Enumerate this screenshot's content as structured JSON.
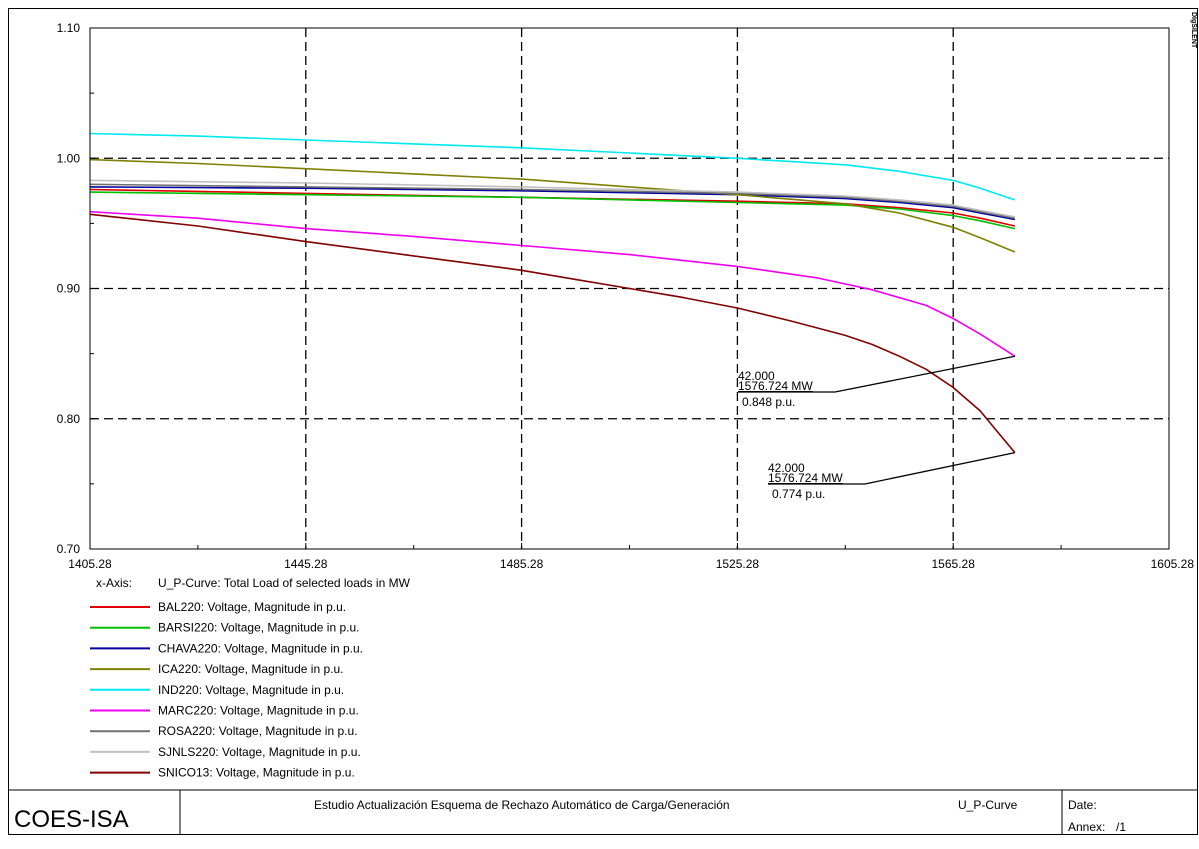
{
  "chart_data": {
    "type": "line",
    "watermark": "DIgSILENT",
    "xlim": [
      1405.28,
      1605.28
    ],
    "ylim": [
      0.7,
      1.1
    ],
    "x_ticks": [
      "1405.28",
      "1445.28",
      "1485.28",
      "1525.28",
      "1565.28",
      "1605.28"
    ],
    "y_ticks": [
      "0.70",
      "0.80",
      "0.90",
      "1.00",
      "1.10"
    ],
    "grid": "dashed",
    "x_axis_label": "x-Axis:",
    "x_axis_desc": "U_P-Curve: Total Load of selected loads in MW",
    "series": [
      {
        "name": "BAL220: Voltage, Magnitude in p.u.",
        "color": "#e00000",
        "x": [
          1405.28,
          1445.28,
          1485.28,
          1525.28,
          1545.28,
          1555.28,
          1565.28,
          1570.28,
          1576.72
        ],
        "y": [
          0.976,
          0.973,
          0.97,
          0.967,
          0.965,
          0.962,
          0.958,
          0.954,
          0.948
        ]
      },
      {
        "name": "BARSI220: Voltage, Magnitude in p.u.",
        "color": "#00c000",
        "x": [
          1405.28,
          1445.28,
          1485.28,
          1525.28,
          1545.28,
          1555.28,
          1565.28,
          1570.28,
          1576.72
        ],
        "y": [
          0.974,
          0.972,
          0.97,
          0.966,
          0.964,
          0.961,
          0.956,
          0.952,
          0.946
        ]
      },
      {
        "name": "CHAVA220: Voltage, Magnitude in p.u.",
        "color": "#0000a0",
        "x": [
          1405.28,
          1445.28,
          1485.28,
          1525.28,
          1545.28,
          1555.28,
          1565.28,
          1570.28,
          1576.72
        ],
        "y": [
          0.978,
          0.977,
          0.975,
          0.972,
          0.969,
          0.966,
          0.962,
          0.958,
          0.953
        ]
      },
      {
        "name": "ICA220: Voltage, Magnitude in p.u.",
        "color": "#808000",
        "x": [
          1405.28,
          1425.28,
          1445.28,
          1465.28,
          1485.28,
          1505.28,
          1525.28,
          1545.28,
          1555.28,
          1565.28,
          1570.28,
          1576.72
        ],
        "y": [
          0.999,
          0.996,
          0.992,
          0.988,
          0.984,
          0.978,
          0.972,
          0.965,
          0.958,
          0.947,
          0.939,
          0.928
        ]
      },
      {
        "name": "IND220: Voltage, Magnitude in p.u.",
        "color": "#00e8f0",
        "x": [
          1405.28,
          1425.28,
          1445.28,
          1465.28,
          1485.28,
          1505.28,
          1525.28,
          1545.28,
          1555.28,
          1565.28,
          1570.28,
          1576.72
        ],
        "y": [
          1.019,
          1.017,
          1.014,
          1.011,
          1.008,
          1.004,
          1.0,
          0.995,
          0.99,
          0.983,
          0.977,
          0.968
        ]
      },
      {
        "name": "MARC220: Voltage, Magnitude in p.u.",
        "color": "#f000f0",
        "x": [
          1405.28,
          1425.28,
          1445.28,
          1465.28,
          1485.28,
          1505.28,
          1525.28,
          1540.28,
          1550.28,
          1560.28,
          1565.28,
          1570.28,
          1576.72
        ],
        "y": [
          0.959,
          0.954,
          0.946,
          0.94,
          0.933,
          0.926,
          0.917,
          0.908,
          0.899,
          0.887,
          0.877,
          0.865,
          0.848
        ]
      },
      {
        "name": "ROSA220: Voltage, Magnitude in p.u.",
        "color": "#707070",
        "x": [
          1405.28,
          1445.28,
          1485.28,
          1525.28,
          1545.28,
          1555.28,
          1565.28,
          1570.28,
          1576.72
        ],
        "y": [
          0.98,
          0.978,
          0.976,
          0.973,
          0.97,
          0.967,
          0.963,
          0.959,
          0.954
        ]
      },
      {
        "name": "SJNLS220: Voltage, Magnitude in p.u.",
        "color": "#c0c0c0",
        "x": [
          1405.28,
          1445.28,
          1485.28,
          1525.28,
          1545.28,
          1555.28,
          1565.28,
          1570.28,
          1576.72
        ],
        "y": [
          0.983,
          0.981,
          0.978,
          0.974,
          0.971,
          0.968,
          0.964,
          0.96,
          0.955
        ]
      },
      {
        "name": "SNICO13: Voltage, Magnitude in p.u.",
        "color": "#800000",
        "x": [
          1405.28,
          1425.28,
          1445.28,
          1465.28,
          1485.28,
          1495.28,
          1505.28,
          1515.28,
          1525.28,
          1535.28,
          1545.28,
          1550.28,
          1555.28,
          1560.28,
          1565.28,
          1570.28,
          1573.28,
          1576.72
        ],
        "y": [
          0.957,
          0.948,
          0.936,
          0.925,
          0.914,
          0.907,
          0.9,
          0.893,
          0.885,
          0.875,
          0.864,
          0.857,
          0.848,
          0.838,
          0.824,
          0.806,
          0.791,
          0.774
        ]
      }
    ],
    "annotations": [
      {
        "target_x": 1576.72,
        "target_y": 0.848,
        "lines": [
          "42.000",
          "1576.724 MW",
          "0.848 p.u."
        ]
      },
      {
        "target_x": 1576.72,
        "target_y": 0.774,
        "lines": [
          "42.000",
          "1576.724 MW",
          "0.774 p.u."
        ]
      }
    ]
  },
  "footer": {
    "company": "COES-ISA",
    "study_title": "Estudio Actualización Esquema de Rechazo Automático de Carga/Generación",
    "plot_name": "U_P-Curve",
    "date_label": "Date:",
    "annex_label": "Annex:",
    "annex_value": "/1"
  }
}
